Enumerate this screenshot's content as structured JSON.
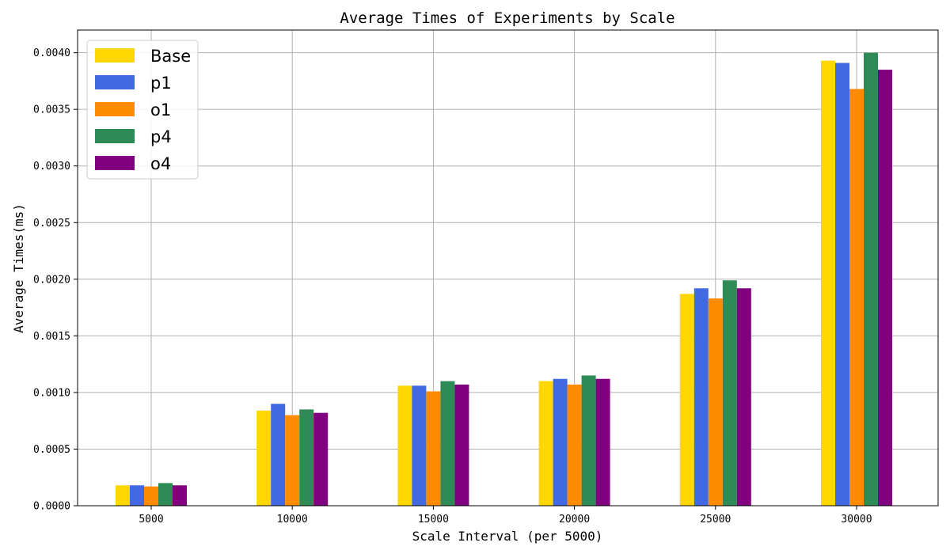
{
  "chart_data": {
    "type": "bar",
    "title": "Average Times of Experiments by Scale",
    "xlabel": "Scale Interval (per 5000)",
    "ylabel": "Average Times(ms)",
    "categories": [
      "5000",
      "10000",
      "15000",
      "20000",
      "25000",
      "30000"
    ],
    "ylim": [
      0,
      0.0042
    ],
    "yticks": [
      "0.0000",
      "0.0005",
      "0.0010",
      "0.0015",
      "0.0020",
      "0.0025",
      "0.0030",
      "0.0035",
      "0.0040"
    ],
    "grid": true,
    "legend_position": "top-left",
    "series": [
      {
        "name": "Base",
        "color": "#FFD700",
        "values": [
          0.00018,
          0.00084,
          0.00106,
          0.0011,
          0.00187,
          0.00393
        ]
      },
      {
        "name": "p1",
        "color": "#4169E1",
        "values": [
          0.00018,
          0.0009,
          0.00106,
          0.00112,
          0.00192,
          0.00391
        ]
      },
      {
        "name": "o1",
        "color": "#FF8C00",
        "values": [
          0.00017,
          0.0008,
          0.00101,
          0.00107,
          0.00183,
          0.00368
        ]
      },
      {
        "name": "p4",
        "color": "#2E8B57",
        "values": [
          0.0002,
          0.00085,
          0.0011,
          0.00115,
          0.00199,
          0.004
        ]
      },
      {
        "name": "o4",
        "color": "#800080",
        "values": [
          0.00018,
          0.00082,
          0.00107,
          0.00112,
          0.00192,
          0.00385
        ]
      }
    ]
  }
}
